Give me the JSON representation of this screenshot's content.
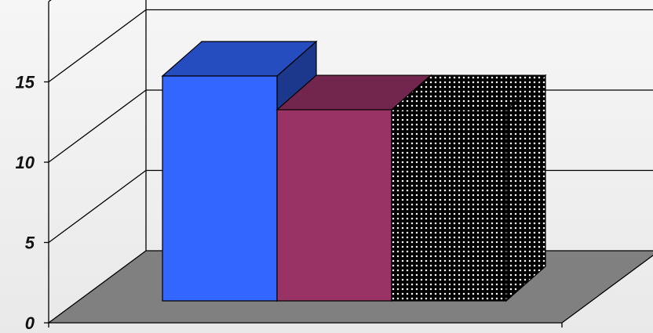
{
  "chart_data": {
    "type": "bar",
    "title": "",
    "xlabel": "",
    "ylabel": "",
    "ylim": [
      0,
      20
    ],
    "yticks": [
      "0",
      "5",
      "10",
      "15"
    ],
    "grid": true,
    "legend": "none",
    "series": [
      {
        "values": [
          14.0
        ],
        "color": "#3366ff",
        "pattern": "solid"
      },
      {
        "values": [
          11.9
        ],
        "color": "#993366",
        "pattern": "solid"
      },
      {
        "values": [
          11.9
        ],
        "color": "#000000",
        "pattern": "dotted"
      }
    ],
    "floor_color": "#808080"
  }
}
